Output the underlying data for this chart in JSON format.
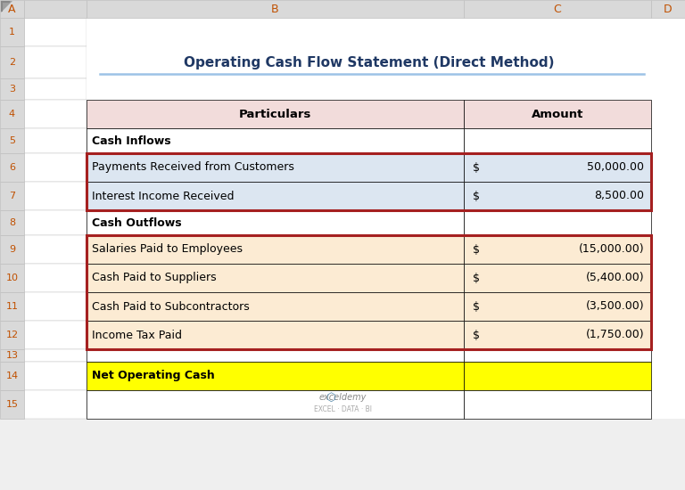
{
  "title": "Operating Cash Flow Statement (Direct Method)",
  "header_bg": "#F2DCDB",
  "blue_bg": "#DCE6F1",
  "orange_bg": "#FCEBD3",
  "yellow_bg": "#FFFF00",
  "white_bg": "#FFFFFF",
  "title_color": "#1F3864",
  "title_underline_color": "#9DC3E6",
  "bg_color": "#EFEFEF",
  "border_dark_red": "#A52020",
  "excel_hdr_color": "#D9D9D9",
  "excel_hdr_border": "#BFBFBF",
  "row_num_color": "#C05000",
  "col_hdr_color": "#C05000",
  "table_border": "#000000",
  "corner_marker_color": "#808080",
  "table_rows": [
    {
      "rnum": 4,
      "label": "Particulars",
      "dollar": null,
      "value": "Amount",
      "bold": true,
      "bg": "header"
    },
    {
      "rnum": 5,
      "label": "Cash Inflows",
      "dollar": null,
      "value": "",
      "bold": true,
      "bg": "white"
    },
    {
      "rnum": 6,
      "label": "Payments Received from Customers",
      "dollar": "$",
      "value": "50,000.00",
      "bold": false,
      "bg": "blue"
    },
    {
      "rnum": 7,
      "label": "Interest Income Received",
      "dollar": "$",
      "value": "8,500.00",
      "bold": false,
      "bg": "blue"
    },
    {
      "rnum": 8,
      "label": "Cash Outflows",
      "dollar": null,
      "value": "",
      "bold": true,
      "bg": "white"
    },
    {
      "rnum": 9,
      "label": "Salaries Paid to Employees",
      "dollar": "$",
      "value": "(15,000.00)",
      "bold": false,
      "bg": "orange"
    },
    {
      "rnum": 10,
      "label": "Cash Paid to Suppliers",
      "dollar": "$",
      "value": "(5,400.00)",
      "bold": false,
      "bg": "orange"
    },
    {
      "rnum": 11,
      "label": "Cash Paid to Subcontractors",
      "dollar": "$",
      "value": "(3,500.00)",
      "bold": false,
      "bg": "orange"
    },
    {
      "rnum": 12,
      "label": "Income Tax Paid",
      "dollar": "$",
      "value": "(1,750.00)",
      "bold": false,
      "bg": "orange"
    },
    {
      "rnum": 13,
      "label": "",
      "dollar": null,
      "value": "",
      "bold": false,
      "bg": "white"
    },
    {
      "rnum": 14,
      "label": "Net Operating Cash",
      "dollar": null,
      "value": "",
      "bold": true,
      "bg": "yellow"
    },
    {
      "rnum": 15,
      "label": "",
      "dollar": null,
      "value": "",
      "bold": false,
      "bg": "white"
    }
  ]
}
